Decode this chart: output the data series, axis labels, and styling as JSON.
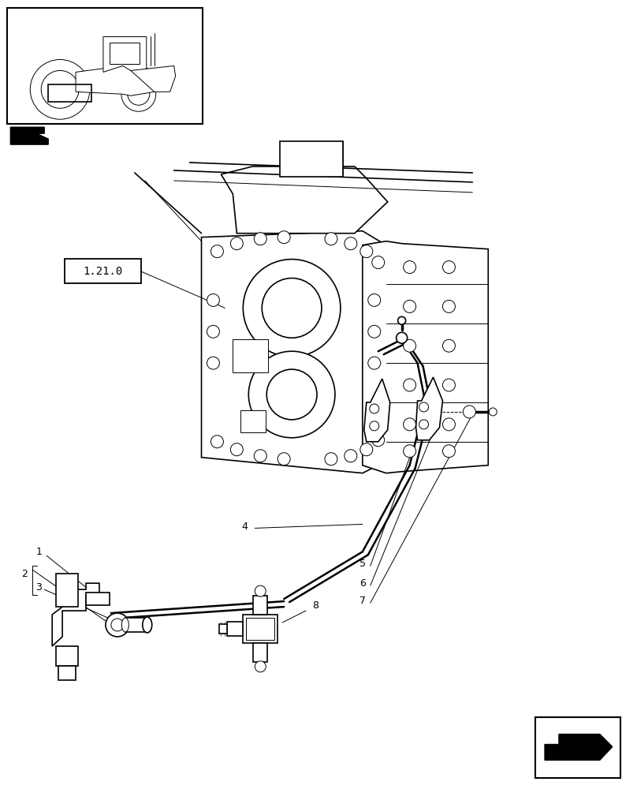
{
  "bg_color": "#ffffff",
  "line_color": "#000000",
  "part_label": "1.21.0",
  "figsize": [
    8.08,
    10.0
  ],
  "dpi": 100,
  "lw_main": 1.2,
  "lw_thin": 0.7,
  "lw_thick": 1.8
}
